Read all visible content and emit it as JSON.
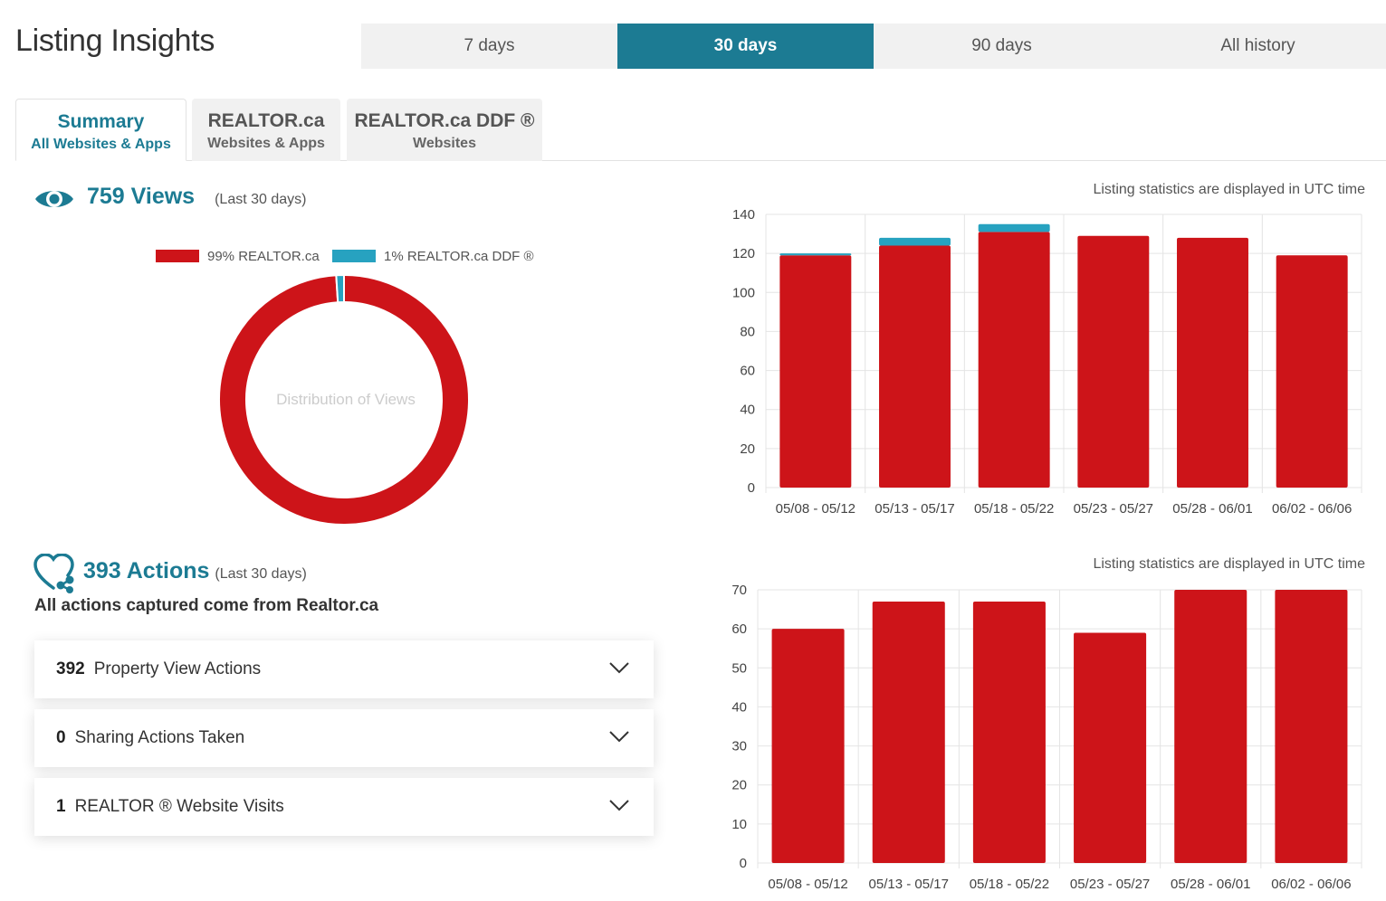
{
  "header": {
    "title": "Listing Insights",
    "ranges": [
      {
        "label": "7 days",
        "active": false
      },
      {
        "label": "30 days",
        "active": true
      },
      {
        "label": "90 days",
        "active": false
      },
      {
        "label": "All history",
        "active": false
      }
    ]
  },
  "tabs": [
    {
      "title": "Summary",
      "subtitle": "All Websites & Apps",
      "active": true
    },
    {
      "title": "REALTOR.ca",
      "subtitle": "Websites & Apps",
      "active": false
    },
    {
      "title": "REALTOR.ca DDF ®",
      "subtitle": "Websites",
      "active": false
    }
  ],
  "views": {
    "count_label": "759 Views",
    "period": "(Last 30 days)",
    "utc_note": "Listing statistics are displayed in UTC time"
  },
  "actions": {
    "count_label": "393 Actions",
    "period": "(Last 30 days)",
    "source_note": "All actions captured come from Realtor.ca",
    "utc_note": "Listing statistics are displayed in UTC time",
    "items": [
      {
        "count": "392",
        "label": "Property View Actions"
      },
      {
        "count": "0",
        "label": "Sharing Actions Taken"
      },
      {
        "count": "1",
        "label": "REALTOR ® Website Visits"
      }
    ]
  },
  "colors": {
    "accent": "#1c7b93",
    "realtor_red": "#cd1419",
    "ddf_blue": "#27a2c0"
  },
  "chart_data": [
    {
      "type": "pie",
      "title": "Distribution of Views",
      "legend": [
        "99% REALTOR.ca",
        "1% REALTOR.ca DDF ®"
      ],
      "values": [
        99,
        1
      ],
      "legend_position": "top"
    },
    {
      "type": "bar",
      "stacked": true,
      "categories": [
        "05/08 - 05/12",
        "05/13 - 05/17",
        "05/18 - 05/22",
        "05/23 - 05/27",
        "05/28 - 06/01",
        "06/02 - 06/06"
      ],
      "series": [
        {
          "values": [
            119,
            124,
            131,
            129,
            128,
            119
          ]
        },
        {
          "values": [
            1,
            4,
            4,
            0,
            0,
            0
          ]
        }
      ],
      "ylim": [
        0,
        140
      ],
      "yticks": [
        0,
        20,
        40,
        60,
        80,
        100,
        120,
        140
      ],
      "grid": true
    },
    {
      "type": "bar",
      "categories": [
        "05/08 - 05/12",
        "05/13 - 05/17",
        "05/18 - 05/22",
        "05/23 - 05/27",
        "05/28 - 06/01",
        "06/02 - 06/06"
      ],
      "series": [
        {
          "values": [
            60,
            67,
            67,
            59,
            70,
            70
          ]
        }
      ],
      "ylim": [
        0,
        70
      ],
      "yticks": [
        0,
        10,
        20,
        30,
        40,
        50,
        60,
        70
      ],
      "grid": true
    }
  ]
}
